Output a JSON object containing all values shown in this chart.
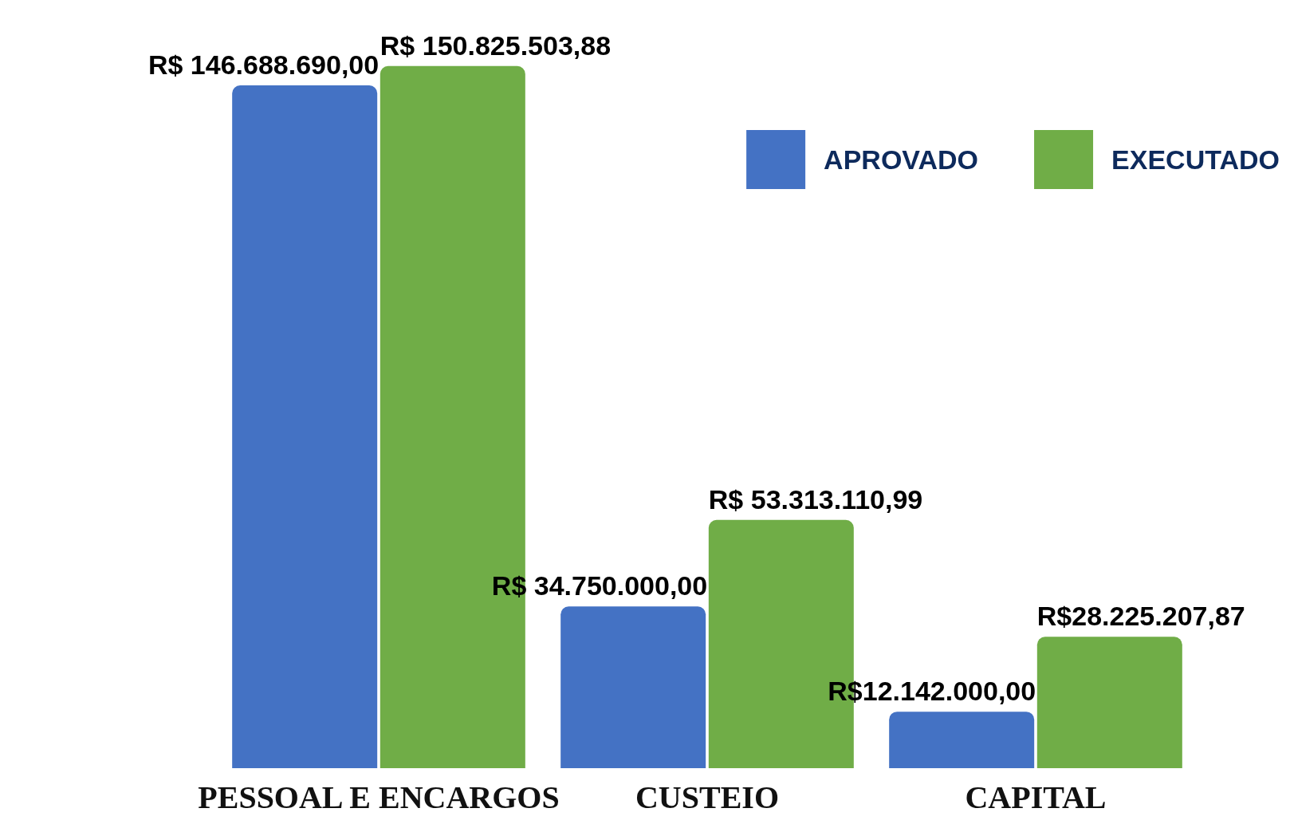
{
  "chart_data": {
    "type": "bar",
    "categories": [
      "PESSOAL E ENCARGOS",
      "CUSTEIO",
      "CAPITAL"
    ],
    "series": [
      {
        "name": "APROVADO",
        "color": "#4472c4",
        "values": [
          146688690,
          34750000,
          12142000
        ],
        "value_labels": [
          "R$ 146.688.690,00",
          "R$ 34.750.000,00",
          "R$12.142.000,00"
        ]
      },
      {
        "name": "EXECUTADO",
        "color": "#70ad47",
        "values": [
          150825503.88,
          53313110.99,
          28225207.87
        ],
        "value_labels": [
          "R$ 150.825.503,88",
          "R$ 53.313.110,99",
          "R$28.225.207,87"
        ]
      }
    ],
    "legend": "top right"
  }
}
